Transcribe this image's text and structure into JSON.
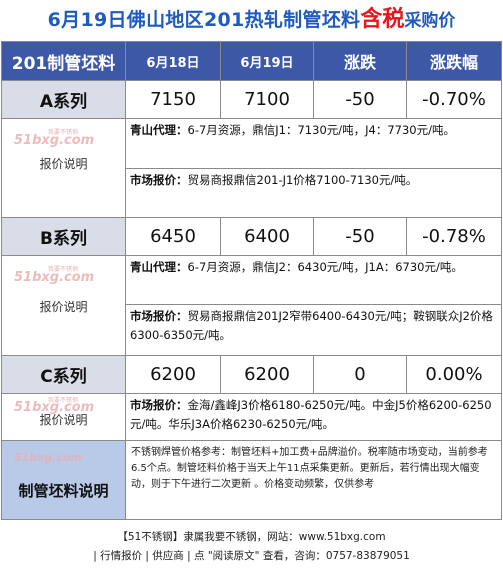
{
  "title": {
    "main": "6月19日佛山地区201热轧制管坯料",
    "highlight": "含税",
    "tail": "采购价"
  },
  "header": {
    "product": "201制管坯料",
    "date1": "6月18日",
    "date2": "6月19日",
    "change": "涨跌",
    "change_pct": "涨跌幅"
  },
  "watermark": {
    "logo": "51bxg.com",
    "sub": "我要不锈钢"
  },
  "note_label": "报价说明",
  "rows": [
    {
      "name": "A系列",
      "d1": "7150",
      "d2": "7100",
      "chg": "-50",
      "pct": "-0.70%",
      "notes": [
        {
          "lead": "青山代理：",
          "text": "6-7月资源，鼎信J1：7130元/吨，J4：7730元/吨。"
        },
        {
          "lead": "市场报价：",
          "text": "贸易商报鼎信201-J1价格7100-7130元/吨。"
        }
      ]
    },
    {
      "name": "B系列",
      "d1": "6450",
      "d2": "6400",
      "chg": "-50",
      "pct": "-0.78%",
      "notes": [
        {
          "lead": "青山代理：",
          "text": "6-7月资源，鼎信J2：6430元/吨，J1A：6730元/吨。"
        },
        {
          "lead": "市场报价：",
          "text": "贸易商报鼎信201J2窄带6400-6430元/吨；鞍钢联众J2价格6300-6350元/吨。"
        }
      ]
    },
    {
      "name": "C系列",
      "d1": "6200",
      "d2": "6200",
      "chg": "0",
      "pct": "0.00%",
      "notes": [
        {
          "lead": "市场报价：",
          "text": "金海/鑫峰J3价格6180-6250元/吨。中金J5价格6200-6250元/吨。华乐J3A价格6230-6250元/吨。"
        }
      ]
    }
  ],
  "footer": {
    "label": "制管坯料说明",
    "text": "不锈钢焊管价格参考：制管坯料+加工费+品牌溢价。税率随市场变动，当前参考6.5个点。制管坯料价格于当天上午11点采集更新。更新后，若行情出现大幅变动，则于下午进行二次更新 。价格变动频繁，仅供参考"
  },
  "bottom": {
    "line1": "【51不锈钢】隶属我要不锈钢，网站：www.51bxg.com",
    "line2": "| 行情报价 | 供应商 | 点 \"阅读原文\" 查看，咨询：0757-83879051"
  }
}
